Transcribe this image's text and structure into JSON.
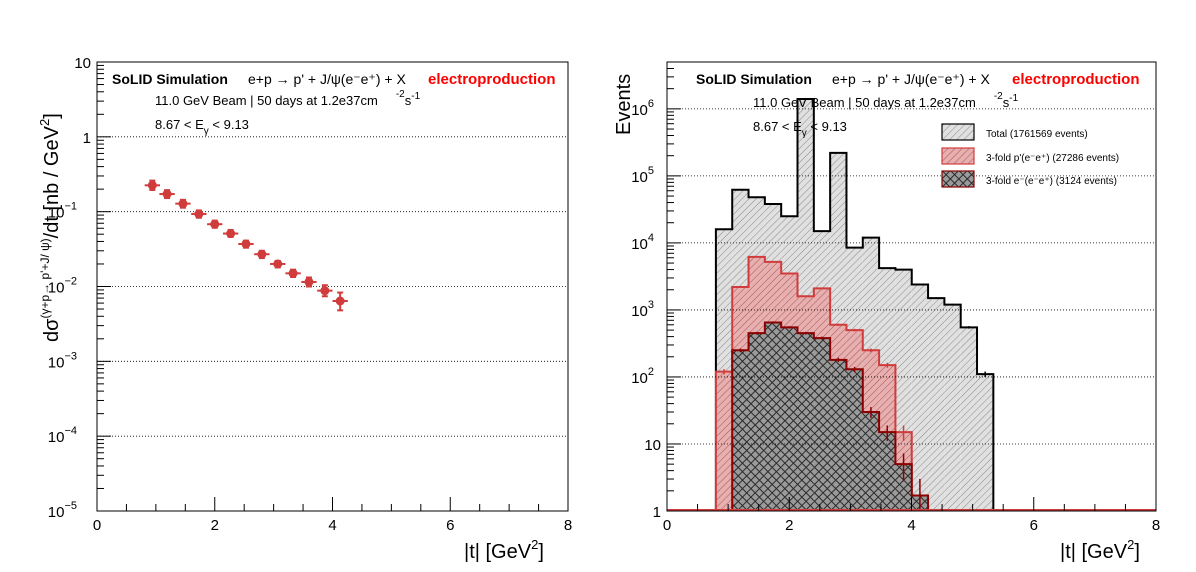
{
  "colors": {
    "axis": "#000000",
    "grid": "#000000",
    "left_points": "#d03c3c",
    "total_line": "#000000",
    "total_fill": "#d9d9d9",
    "three_fold_p_line": "#d03c3c",
    "three_fold_p_fill": "#d98c8c",
    "three_fold_e_line": "#8b0000",
    "three_fold_e_fill": "#555555",
    "electroproduction": "#ff0000"
  },
  "chart_data": [
    {
      "type": "scatter",
      "header": {
        "sim": "SoLID Simulation",
        "reaction": "e+p → p' + J/ψ(e⁻e⁺) + X",
        "tag": "electroproduction",
        "beam": "11.0 GeV Beam | 50 days at 1.2e37cm",
        "lumi_exp": "-2",
        "lumi_s": "s",
        "lumi_s_exp": "-1",
        "egamma_pre": "8.67 < E",
        "egamma_sub": "γ",
        "egamma_post": " < 9.13"
      },
      "xlabel_main": "|t| [GeV",
      "xlabel_sup": "2",
      "xlabel_close": "]",
      "ylabel_pre": "dσ",
      "ylabel_sup": "(γ+p→ p'+J/ ψ)",
      "ylabel_post": "/dt [nb / GeV",
      "ylabel_sup2": "2",
      "ylabel_close": "]",
      "xlim": [
        0,
        8
      ],
      "ylim": [
        1e-05,
        10
      ],
      "log_y": true,
      "grid_y": true,
      "xticks": [
        "0",
        "2",
        "4",
        "6",
        "8"
      ],
      "yticks": [
        {
          "v": 10,
          "base": "10",
          "exp": ""
        },
        {
          "v": 1,
          "base": "1",
          "exp": ""
        },
        {
          "v": 0.1,
          "base": "10",
          "exp": "−1"
        },
        {
          "v": 0.01,
          "base": "10",
          "exp": "−2"
        },
        {
          "v": 0.001,
          "base": "10",
          "exp": "−3"
        },
        {
          "v": 0.0001,
          "base": "10",
          "exp": "−4"
        },
        {
          "v": 1e-05,
          "base": "10",
          "exp": "−5"
        }
      ],
      "x": [
        0.94,
        1.19,
        1.46,
        1.73,
        2.0,
        2.27,
        2.53,
        2.8,
        3.07,
        3.33,
        3.6,
        3.87,
        4.13
      ],
      "y": [
        0.225,
        0.172,
        0.128,
        0.093,
        0.068,
        0.051,
        0.037,
        0.027,
        0.02,
        0.015,
        0.0115,
        0.0088,
        0.0064
      ],
      "xerr": 0.13,
      "yerr_lo": [
        0.03,
        0.02,
        0.015,
        0.01,
        0.007,
        0.005,
        0.004,
        0.003,
        0.002,
        0.0016,
        0.0015,
        0.0014,
        0.0016
      ],
      "yerr_hi": [
        0.035,
        0.022,
        0.016,
        0.011,
        0.008,
        0.006,
        0.004,
        0.003,
        0.002,
        0.0018,
        0.0017,
        0.0016,
        0.0019
      ]
    },
    {
      "type": "histogram",
      "header": {
        "sim": "SoLID Simulation",
        "reaction": "e+p → p' + J/ψ(e⁻e⁺) + X",
        "tag": "electroproduction",
        "beam": "11.0 GeV Beam | 50 days at 1.2e37cm",
        "lumi_exp": "-2",
        "lumi_s": "s",
        "lumi_s_exp": "-1",
        "egamma_pre": "8.67 < E",
        "egamma_sub": "γ",
        "egamma_post": " < 9.13"
      },
      "xlabel_main": "|t| [GeV",
      "xlabel_sup": "2",
      "xlabel_close": "]",
      "ylabel": "Events",
      "xlim": [
        0,
        8
      ],
      "ylim": [
        1,
        5000000
      ],
      "log_y": true,
      "grid_y": true,
      "xticks": [
        "0",
        "2",
        "4",
        "6",
        "8"
      ],
      "yticks": [
        {
          "v": 1000000,
          "base": "10",
          "exp": "6"
        },
        {
          "v": 100000,
          "base": "10",
          "exp": "5"
        },
        {
          "v": 10000,
          "base": "10",
          "exp": "4"
        },
        {
          "v": 1000,
          "base": "10",
          "exp": "3"
        },
        {
          "v": 100,
          "base": "10",
          "exp": "2"
        },
        {
          "v": 10,
          "base": "10",
          "exp": ""
        },
        {
          "v": 1,
          "base": "1",
          "exp": ""
        }
      ],
      "bin_width": 0.267,
      "bin_start": 0.8,
      "legend": {
        "position": "top-right",
        "entries": [
          "Total (1761569 events)",
          "3-fold p'(e⁻e⁺) (27286 events)",
          "3-fold e⁻(e⁻e⁺) (3124 events)"
        ]
      },
      "series": [
        {
          "name": "Total (1761569 events)",
          "values": [
            16000,
            62000,
            48000,
            38000,
            25000,
            1400000,
            15000,
            220000,
            8500,
            12000,
            4200,
            4000,
            2400,
            1500,
            1200,
            550,
            110
          ]
        },
        {
          "name": "3-fold p'(e⁻e⁺) (27286 events)",
          "values": [
            120,
            2200,
            6200,
            5200,
            3500,
            1600,
            2100,
            600,
            500,
            250,
            150,
            15
          ]
        },
        {
          "name": "3-fold e⁻(e⁻e⁺) (3124 events)",
          "start_bin": 1,
          "values": [
            250,
            450,
            650,
            550,
            450,
            380,
            180,
            130,
            30,
            15,
            5,
            1.7
          ]
        }
      ]
    }
  ]
}
